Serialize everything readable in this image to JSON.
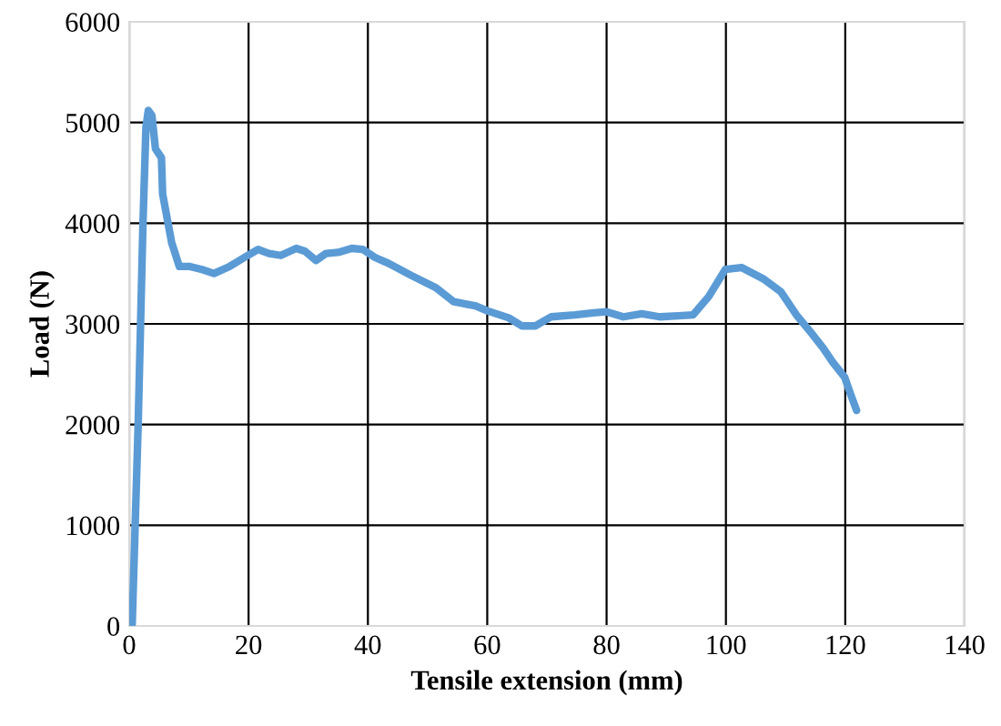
{
  "chart_data": {
    "type": "line",
    "xlabel": "Tensile extension (mm)",
    "ylabel": "Load (N)",
    "xlim": [
      0,
      140
    ],
    "xticks": [
      0,
      20,
      40,
      60,
      80,
      100,
      120,
      140
    ],
    "ylim": [
      0,
      6000
    ],
    "yticks": [
      0,
      1000,
      2000,
      3000,
      4000,
      5000,
      6000
    ],
    "grid": true,
    "legend": false,
    "marker": "none",
    "line_style": "solid",
    "series": [
      {
        "color": "#5b9bd5",
        "x": [
          0,
          0.5,
          1.5,
          2.3,
          2.8,
          3.2,
          3.8,
          4.4,
          5.4,
          5.6,
          7.1,
          8.4,
          10.2,
          12.2,
          14.2,
          16.8,
          19.3,
          21.6,
          23.4,
          25.4,
          28,
          29.5,
          31.3,
          33,
          35,
          37.3,
          39.1,
          41.2,
          43.5,
          47.3,
          51.4,
          54.4,
          58,
          60,
          63.6,
          65.8,
          68.1,
          70.7,
          74.7,
          77.8,
          80,
          82.8,
          85.9,
          88.9,
          92,
          94.5,
          97.1,
          99.9,
          102.6,
          106.2,
          109.2,
          111.8,
          114.3,
          116.3,
          117.9,
          119.9,
          120.9,
          121.9
        ],
        "values": [
          0,
          20,
          2000,
          3990,
          4950,
          5120,
          5070,
          4740,
          4650,
          4290,
          3810,
          3570,
          3570,
          3540,
          3500,
          3570,
          3660,
          3740,
          3700,
          3680,
          3750,
          3720,
          3630,
          3700,
          3710,
          3750,
          3740,
          3660,
          3600,
          3480,
          3360,
          3220,
          3180,
          3130,
          3060,
          2980,
          2980,
          3070,
          3090,
          3110,
          3120,
          3070,
          3100,
          3070,
          3080,
          3090,
          3270,
          3540,
          3560,
          3450,
          3320,
          3090,
          2910,
          2760,
          2620,
          2470,
          2300,
          2140
        ]
      }
    ]
  }
}
